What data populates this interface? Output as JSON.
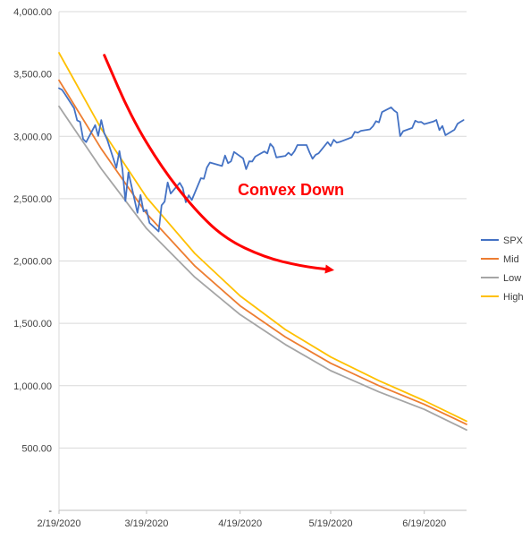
{
  "chart_data": {
    "type": "line",
    "title": "",
    "xlabel": "",
    "ylabel": "",
    "x_ticks": [
      "2/19/2020",
      "3/19/2020",
      "4/19/2020",
      "5/19/2020",
      "6/19/2020"
    ],
    "x_tick_dates": [
      "2020-02-19",
      "2020-03-19",
      "2020-04-19",
      "2020-05-19",
      "2020-06-19"
    ],
    "x_range": [
      "2020-02-19",
      "2020-07-03"
    ],
    "y_ticks": [
      "-",
      "500.00",
      "1,000.00",
      "1,500.00",
      "2,000.00",
      "2,500.00",
      "3,000.00",
      "3,500.00",
      "4,000.00"
    ],
    "ylim": [
      0,
      4000
    ],
    "grid": "horizontal",
    "legend_position": "right",
    "annotation": {
      "text": "Convex Down",
      "color": "#ff0000"
    },
    "arrow_color": "#ff0000",
    "series": [
      {
        "name": "SPX",
        "color": "#4472c4",
        "points": [
          [
            "2020-02-19",
            3386
          ],
          [
            "2020-02-20",
            3373
          ],
          [
            "2020-02-21",
            3337
          ],
          [
            "2020-02-24",
            3225
          ],
          [
            "2020-02-25",
            3128
          ],
          [
            "2020-02-26",
            3116
          ],
          [
            "2020-02-27",
            2979
          ],
          [
            "2020-02-28",
            2954
          ],
          [
            "2020-03-02",
            3090
          ],
          [
            "2020-03-03",
            3003
          ],
          [
            "2020-03-04",
            3130
          ],
          [
            "2020-03-05",
            3024
          ],
          [
            "2020-03-06",
            2972
          ],
          [
            "2020-03-09",
            2747
          ],
          [
            "2020-03-10",
            2882
          ],
          [
            "2020-03-11",
            2741
          ],
          [
            "2020-03-12",
            2481
          ],
          [
            "2020-03-13",
            2711
          ],
          [
            "2020-03-16",
            2386
          ],
          [
            "2020-03-17",
            2529
          ],
          [
            "2020-03-18",
            2398
          ],
          [
            "2020-03-19",
            2409
          ],
          [
            "2020-03-20",
            2305
          ],
          [
            "2020-03-23",
            2237
          ],
          [
            "2020-03-24",
            2447
          ],
          [
            "2020-03-25",
            2476
          ],
          [
            "2020-03-26",
            2630
          ],
          [
            "2020-03-27",
            2541
          ],
          [
            "2020-03-30",
            2627
          ],
          [
            "2020-03-31",
            2585
          ],
          [
            "2020-04-01",
            2471
          ],
          [
            "2020-04-02",
            2527
          ],
          [
            "2020-04-03",
            2489
          ],
          [
            "2020-04-06",
            2664
          ],
          [
            "2020-04-07",
            2659
          ],
          [
            "2020-04-08",
            2750
          ],
          [
            "2020-04-09",
            2790
          ],
          [
            "2020-04-13",
            2762
          ],
          [
            "2020-04-14",
            2846
          ],
          [
            "2020-04-15",
            2784
          ],
          [
            "2020-04-16",
            2800
          ],
          [
            "2020-04-17",
            2875
          ],
          [
            "2020-04-20",
            2823
          ],
          [
            "2020-04-21",
            2737
          ],
          [
            "2020-04-22",
            2799
          ],
          [
            "2020-04-23",
            2798
          ],
          [
            "2020-04-24",
            2837
          ],
          [
            "2020-04-27",
            2878
          ],
          [
            "2020-04-28",
            2863
          ],
          [
            "2020-04-29",
            2940
          ],
          [
            "2020-04-30",
            2912
          ],
          [
            "2020-05-01",
            2831
          ],
          [
            "2020-05-04",
            2843
          ],
          [
            "2020-05-05",
            2868
          ],
          [
            "2020-05-06",
            2848
          ],
          [
            "2020-05-07",
            2881
          ],
          [
            "2020-05-08",
            2930
          ],
          [
            "2020-05-11",
            2930
          ],
          [
            "2020-05-12",
            2870
          ],
          [
            "2020-05-13",
            2820
          ],
          [
            "2020-05-14",
            2852
          ],
          [
            "2020-05-15",
            2864
          ],
          [
            "2020-05-18",
            2954
          ],
          [
            "2020-05-19",
            2923
          ],
          [
            "2020-05-20",
            2972
          ],
          [
            "2020-05-21",
            2949
          ],
          [
            "2020-05-22",
            2955
          ],
          [
            "2020-05-26",
            2992
          ],
          [
            "2020-05-27",
            3036
          ],
          [
            "2020-05-28",
            3030
          ],
          [
            "2020-05-29",
            3044
          ],
          [
            "2020-06-01",
            3056
          ],
          [
            "2020-06-02",
            3081
          ],
          [
            "2020-06-03",
            3122
          ],
          [
            "2020-06-04",
            3112
          ],
          [
            "2020-06-05",
            3194
          ],
          [
            "2020-06-08",
            3232
          ],
          [
            "2020-06-09",
            3207
          ],
          [
            "2020-06-10",
            3190
          ],
          [
            "2020-06-11",
            3002
          ],
          [
            "2020-06-12",
            3041
          ],
          [
            "2020-06-15",
            3067
          ],
          [
            "2020-06-16",
            3125
          ],
          [
            "2020-06-17",
            3113
          ],
          [
            "2020-06-18",
            3115
          ],
          [
            "2020-06-19",
            3098
          ],
          [
            "2020-06-22",
            3118
          ],
          [
            "2020-06-23",
            3131
          ],
          [
            "2020-06-24",
            3050
          ],
          [
            "2020-06-25",
            3083
          ],
          [
            "2020-06-26",
            3009
          ],
          [
            "2020-06-29",
            3053
          ],
          [
            "2020-06-30",
            3100
          ],
          [
            "2020-07-01",
            3116
          ],
          [
            "2020-07-02",
            3130
          ]
        ]
      },
      {
        "name": "Mid",
        "color": "#ed7d31",
        "points": [
          [
            "2020-02-19",
            3450
          ],
          [
            "2020-03-04",
            2900
          ],
          [
            "2020-03-19",
            2380
          ],
          [
            "2020-04-04",
            1960
          ],
          [
            "2020-04-19",
            1640
          ],
          [
            "2020-05-04",
            1390
          ],
          [
            "2020-05-19",
            1180
          ],
          [
            "2020-06-04",
            1000
          ],
          [
            "2020-06-19",
            850
          ],
          [
            "2020-07-03",
            690
          ]
        ]
      },
      {
        "name": "Low",
        "color": "#a5a5a5",
        "points": [
          [
            "2020-02-19",
            3240
          ],
          [
            "2020-03-04",
            2740
          ],
          [
            "2020-03-19",
            2260
          ],
          [
            "2020-04-04",
            1870
          ],
          [
            "2020-04-19",
            1570
          ],
          [
            "2020-05-04",
            1330
          ],
          [
            "2020-05-19",
            1120
          ],
          [
            "2020-06-04",
            950
          ],
          [
            "2020-06-19",
            810
          ],
          [
            "2020-07-03",
            645
          ]
        ]
      },
      {
        "name": "High",
        "color": "#ffc000",
        "points": [
          [
            "2020-02-19",
            3670
          ],
          [
            "2020-03-04",
            3060
          ],
          [
            "2020-03-19",
            2510
          ],
          [
            "2020-04-04",
            2060
          ],
          [
            "2020-04-19",
            1720
          ],
          [
            "2020-05-04",
            1450
          ],
          [
            "2020-05-19",
            1230
          ],
          [
            "2020-06-04",
            1040
          ],
          [
            "2020-06-19",
            880
          ],
          [
            "2020-07-03",
            715
          ]
        ]
      }
    ],
    "arrow_path": [
      [
        "2020-03-05",
        3650
      ],
      [
        "2020-03-14",
        3150
      ],
      [
        "2020-03-24",
        2750
      ],
      [
        "2020-04-04",
        2410
      ],
      [
        "2020-04-14",
        2180
      ],
      [
        "2020-04-27",
        2030
      ],
      [
        "2020-05-09",
        1960
      ],
      [
        "2020-05-19",
        1930
      ]
    ]
  }
}
